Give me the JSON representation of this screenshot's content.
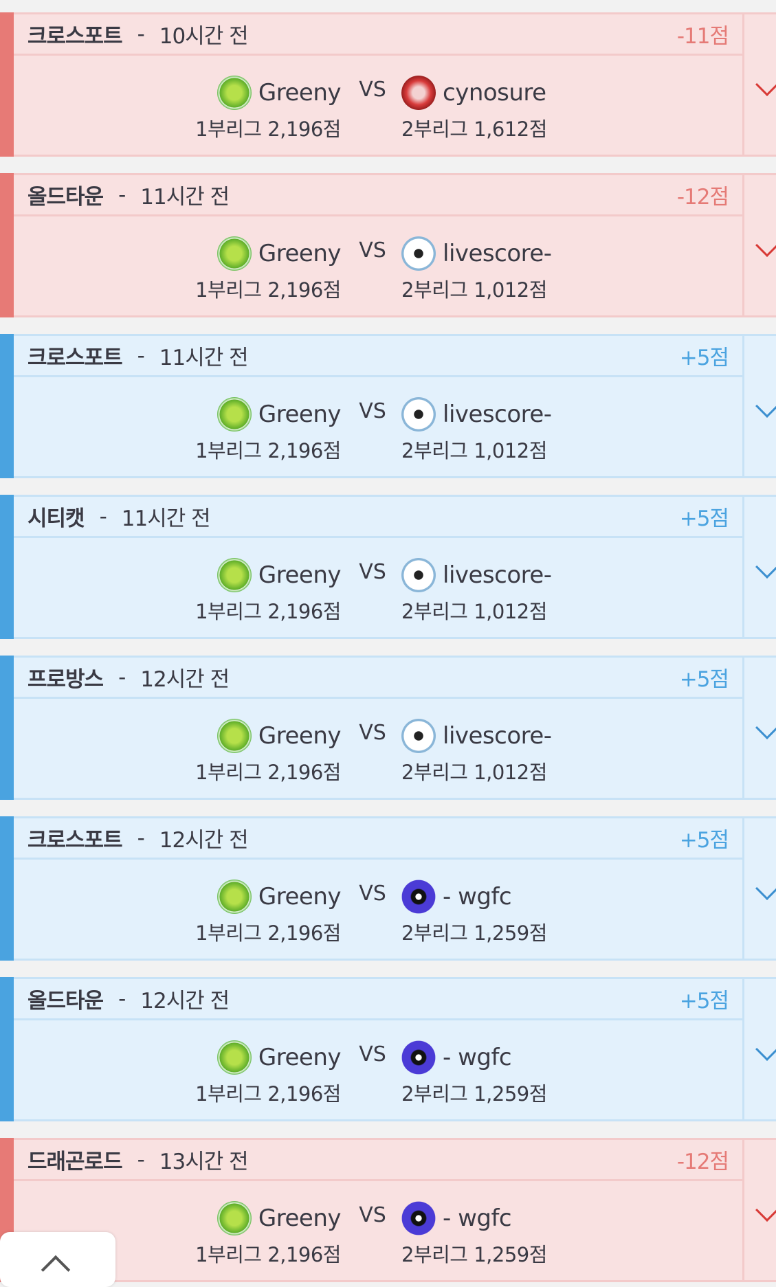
{
  "matches": [
    {
      "result": "loss",
      "map": "크로스포트",
      "time": "10시간 전",
      "points": "-11점",
      "left": {
        "name": "Greeny",
        "icon": "greeny",
        "score": "1부리그 2,196점"
      },
      "vs": "VS",
      "right": {
        "name": "cynosure",
        "icon": "cyn",
        "score": "2부리그 1,612점"
      }
    },
    {
      "result": "loss",
      "map": "올드타운",
      "time": "11시간 전",
      "points": "-12점",
      "left": {
        "name": "Greeny",
        "icon": "greeny",
        "score": "1부리그 2,196점"
      },
      "vs": "VS",
      "right": {
        "name": "livescore-",
        "icon": "ball",
        "score": "2부리그 1,012점"
      }
    },
    {
      "result": "win",
      "map": "크로스포트",
      "time": "11시간 전",
      "points": "+5점",
      "left": {
        "name": "Greeny",
        "icon": "greeny",
        "score": "1부리그 2,196점"
      },
      "vs": "VS",
      "right": {
        "name": "livescore-",
        "icon": "ball",
        "score": "2부리그 1,012점"
      }
    },
    {
      "result": "win",
      "map": "시티캣",
      "time": "11시간 전",
      "points": "+5점",
      "left": {
        "name": "Greeny",
        "icon": "greeny",
        "score": "1부리그 2,196점"
      },
      "vs": "VS",
      "right": {
        "name": "livescore-",
        "icon": "ball",
        "score": "2부리그 1,012점"
      }
    },
    {
      "result": "win",
      "map": "프로방스",
      "time": "12시간 전",
      "points": "+5점",
      "left": {
        "name": "Greeny",
        "icon": "greeny",
        "score": "1부리그 2,196점"
      },
      "vs": "VS",
      "right": {
        "name": "livescore-",
        "icon": "ball",
        "score": "2부리그 1,012점"
      }
    },
    {
      "result": "win",
      "map": "크로스포트",
      "time": "12시간 전",
      "points": "+5점",
      "left": {
        "name": "Greeny",
        "icon": "greeny",
        "score": "1부리그 2,196점"
      },
      "vs": "VS",
      "right": {
        "name": "- wgfc",
        "icon": "wgfc",
        "score": "2부리그 1,259점"
      }
    },
    {
      "result": "win",
      "map": "올드타운",
      "time": "12시간 전",
      "points": "+5점",
      "left": {
        "name": "Greeny",
        "icon": "greeny",
        "score": "1부리그 2,196점"
      },
      "vs": "VS",
      "right": {
        "name": "- wgfc",
        "icon": "wgfc",
        "score": "2부리그 1,259점"
      }
    },
    {
      "result": "loss",
      "map": "드래곤로드",
      "time": "13시간 전",
      "points": "-12점",
      "left": {
        "name": "Greeny",
        "icon": "greeny",
        "score": "1부리그 2,196점"
      },
      "vs": "VS",
      "right": {
        "name": "- wgfc",
        "icon": "wgfc",
        "score": "2부리그 1,259점"
      }
    }
  ],
  "separator": "-",
  "colors": {
    "loss": "#e77a76",
    "win": "#4aa3e0"
  },
  "scroll_top_icon": "chevron-up-icon"
}
